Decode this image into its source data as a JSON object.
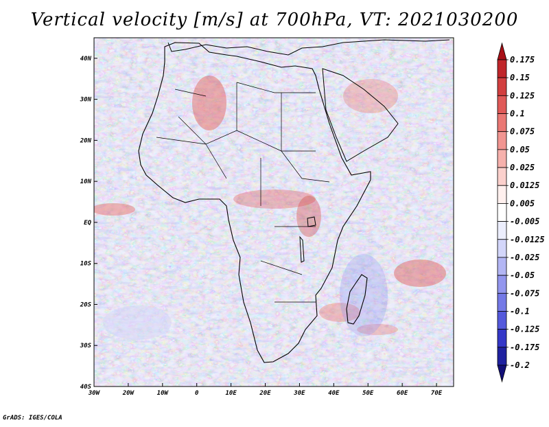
{
  "title": "Vertical velocity [m/s] at 700hPa, VT: 2021030200",
  "credit": "GrADS: IGES/COLA",
  "chart_data": {
    "type": "heatmap",
    "variable": "Vertical velocity",
    "units": "m/s",
    "level": "700hPa",
    "valid_time": "2021030200",
    "x_ticks": [
      "30W",
      "20W",
      "10W",
      "0",
      "10E",
      "20E",
      "30E",
      "40E",
      "50E",
      "60E",
      "70E"
    ],
    "x_tick_values": [
      -30,
      -20,
      -10,
      0,
      10,
      20,
      30,
      40,
      50,
      60,
      70
    ],
    "y_ticks": [
      "40N",
      "30N",
      "20N",
      "10N",
      "EQ",
      "10S",
      "20S",
      "30S",
      "40S"
    ],
    "y_tick_values": [
      40,
      30,
      20,
      10,
      0,
      -10,
      -20,
      -30,
      -40
    ],
    "xlim": [
      -30,
      75
    ],
    "ylim": [
      -40,
      45
    ],
    "colorbar": {
      "labels": [
        "0.175",
        "0.15",
        "0.125",
        "0.1",
        "0.075",
        "0.05",
        "0.025",
        "0.0125",
        "0.005",
        "-0.005",
        "-0.0125",
        "-0.025",
        "-0.05",
        "-0.075",
        "-0.1",
        "-0.125",
        "-0.175",
        "-0.2"
      ],
      "colors": [
        "#a80f16",
        "#c0262a",
        "#d23f3f",
        "#e05a58",
        "#ea7874",
        "#f19591",
        "#f6b1ac",
        "#fbd0cc",
        "#fff0ee",
        "#ffffff",
        "#eceefd",
        "#d3d6fa",
        "#b3b6f4",
        "#9396ee",
        "#7479e6",
        "#5459dc",
        "#3437c8",
        "#1f21a0",
        "#120f78"
      ]
    }
  }
}
